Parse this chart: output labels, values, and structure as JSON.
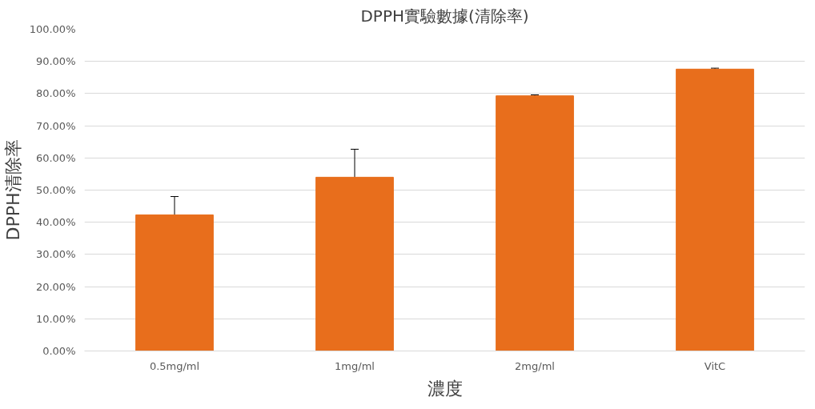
{
  "chart_data": {
    "type": "bar",
    "title": "DPPH實驗數據(清除率)",
    "xlabel": "濃度",
    "ylabel": "DPPH清除率",
    "categories": [
      "0.5mg/ml",
      "1mg/ml",
      "2mg/ml",
      "VitC"
    ],
    "values": [
      42.3,
      54.0,
      79.3,
      87.6
    ],
    "errors": [
      5.7,
      8.7,
      0.3,
      0.3
    ],
    "color": "#e86e1c",
    "ylim": [
      0,
      100
    ],
    "yticks": [
      {
        "value": 0,
        "label": "0.00%"
      },
      {
        "value": 10,
        "label": "10.00%"
      },
      {
        "value": 20,
        "label": "20.00%"
      },
      {
        "value": 30,
        "label": "30.00%"
      },
      {
        "value": 40,
        "label": "40.00%"
      },
      {
        "value": 50,
        "label": "50.00%"
      },
      {
        "value": 60,
        "label": "60.00%"
      },
      {
        "value": 70,
        "label": "70.00%"
      },
      {
        "value": 80,
        "label": "80.00%"
      },
      {
        "value": 90,
        "label": "90.00%"
      },
      {
        "value": 100,
        "label": "100.00%"
      }
    ],
    "grid": "y",
    "legend": false
  }
}
